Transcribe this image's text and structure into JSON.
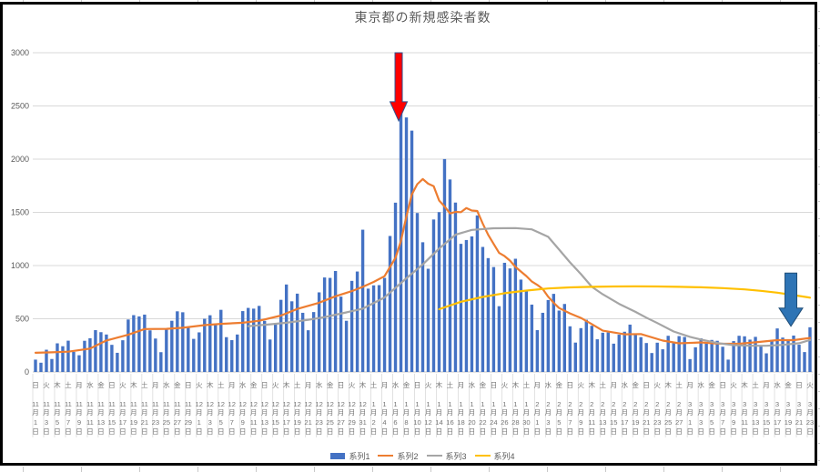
{
  "chart": {
    "title": "東京都の新規感染者数",
    "legend": [
      {
        "label": "系列1",
        "color": "#4472C4",
        "marker": "bar"
      },
      {
        "label": "系列2",
        "color": "#ED7D31",
        "marker": "line"
      },
      {
        "label": "系列3",
        "color": "#A5A5A5",
        "marker": "line"
      },
      {
        "label": "系列4",
        "color": "#FFC000",
        "marker": "line"
      }
    ],
    "y_ticks": [
      "0",
      "500",
      "1000",
      "1500",
      "2000",
      "2500",
      "3000"
    ],
    "month_char": "月",
    "day_char": "日"
  },
  "chart_data": {
    "type": "combo",
    "title": "東京都の新規感染者数",
    "ylim": [
      0,
      3000
    ],
    "y_step": 500,
    "grid": true,
    "legend_position": "bottom",
    "x_label_format": "weekday / M月 / D日 (every 2 days)",
    "x_labels": [
      "日,11,1",
      "火,11,3",
      "木,11,5",
      "土,11,7",
      "月,11,9",
      "水,11,11",
      "金,11,13",
      "日,11,15",
      "火,11,17",
      "木,11,19",
      "土,11,21",
      "月,11,23",
      "水,11,25",
      "金,11,27",
      "日,11,29",
      "火,12,1",
      "木,12,3",
      "土,12,5",
      "月,12,7",
      "水,12,9",
      "金,12,11",
      "日,12,13",
      "火,12,15",
      "木,12,17",
      "土,12,19",
      "月,12,21",
      "水,12,23",
      "金,12,25",
      "日,12,27",
      "火,12,29",
      "木,12,31",
      "土,1,2",
      "月,1,4",
      "水,1,6",
      "金,1,8",
      "日,1,10",
      "火,1,12",
      "木,1,14",
      "土,1,16",
      "月,1,18",
      "水,1,20",
      "金,1,22",
      "日,1,24",
      "火,1,26",
      "木,1,28",
      "土,1,30",
      "月,2,1",
      "水,2,3",
      "金,2,5",
      "日,2,7",
      "火,2,9",
      "木,2,11",
      "土,2,13",
      "月,2,15",
      "水,2,17",
      "金,2,19",
      "日,2,21",
      "火,2,23",
      "木,2,25",
      "土,2,27",
      "月,3,1",
      "水,3,3",
      "金,3,5",
      "日,3,7",
      "火,3,9",
      "木,3,11",
      "土,3,13",
      "月,3,15",
      "水,3,17",
      "金,3,19",
      "日,3,21",
      "火,3,23"
    ],
    "series": [
      {
        "name": "系列1",
        "type": "bar",
        "color": "#4472C4",
        "values": [
          116,
          87,
          209,
          122,
          269,
          242,
          294,
          189,
          157,
          293,
          317,
          393,
          374,
          352,
          255,
          180,
          298,
          493,
          534,
          522,
          539,
          391,
          314,
          186,
          401,
          481,
          570,
          561,
          418,
          311,
          372,
          500,
          533,
          449,
          584,
          327,
          299,
          352,
          572,
          602,
          595,
          621,
          480,
          305,
          460,
          678,
          822,
          664,
          736,
          556,
          392,
          563,
          748,
          888,
          884,
          949,
          708,
          481,
          856,
          944,
          1337,
          783,
          814,
          816,
          884,
          1278,
          1591,
          2447,
          2392,
          2268,
          1494,
          1219,
          970,
          1433,
          1502,
          2001,
          1809,
          1592,
          1204,
          1240,
          1274,
          1471,
          1175,
          1070,
          986,
          618,
          1026,
          973,
          1064,
          868,
          769,
          633,
          393,
          556,
          676,
          734,
          577,
          639,
          429,
          276,
          412,
          491,
          434,
          307,
          369,
          371,
          266,
          350,
          378,
          445,
          353,
          327,
          272,
          178,
          275,
          213,
          340,
          270,
          337,
          329,
          121,
          232,
          316,
          279,
          301,
          293,
          237,
          116,
          290,
          340,
          335,
          304,
          330,
          239,
          175,
          300,
          409,
          323,
          303,
          342,
          256,
          187,
          420
        ]
      },
      {
        "name": "系列2",
        "type": "line",
        "color": "#ED7D31",
        "points": [
          [
            0,
            180
          ],
          [
            3,
            185
          ],
          [
            6,
            191
          ],
          [
            10,
            220
          ],
          [
            13,
            296
          ],
          [
            17,
            350
          ],
          [
            20,
            403
          ],
          [
            24,
            405
          ],
          [
            27,
            415
          ],
          [
            31,
            440
          ],
          [
            34,
            452
          ],
          [
            38,
            462
          ],
          [
            41,
            481
          ],
          [
            45,
            530
          ],
          [
            48,
            592
          ],
          [
            52,
            650
          ],
          [
            55,
            711
          ],
          [
            58,
            760
          ],
          [
            60,
            800
          ],
          [
            62,
            846
          ],
          [
            64,
            900
          ],
          [
            66,
            1072
          ],
          [
            67,
            1230
          ],
          [
            68,
            1460
          ],
          [
            69,
            1668
          ],
          [
            70,
            1765
          ],
          [
            71,
            1813
          ],
          [
            72,
            1769
          ],
          [
            73,
            1746
          ],
          [
            74,
            1611
          ],
          [
            75,
            1555
          ],
          [
            76,
            1490
          ],
          [
            77,
            1504
          ],
          [
            78,
            1502
          ],
          [
            79,
            1540
          ],
          [
            80,
            1517
          ],
          [
            81,
            1513
          ],
          [
            82,
            1395
          ],
          [
            83,
            1289
          ],
          [
            84,
            1203
          ],
          [
            85,
            1119
          ],
          [
            86,
            1089
          ],
          [
            87,
            1046
          ],
          [
            88,
            987
          ],
          [
            89,
            944
          ],
          [
            90,
            901
          ],
          [
            91,
            850
          ],
          [
            92,
            818
          ],
          [
            93,
            780
          ],
          [
            94,
            708
          ],
          [
            95,
            650
          ],
          [
            96,
            601
          ],
          [
            98,
            550
          ],
          [
            100,
            508
          ],
          [
            102,
            450
          ],
          [
            104,
            388
          ],
          [
            108,
            354
          ],
          [
            111,
            356
          ],
          [
            115,
            295
          ],
          [
            118,
            269
          ],
          [
            122,
            278
          ],
          [
            125,
            267
          ],
          [
            129,
            265
          ],
          [
            132,
            279
          ],
          [
            136,
            299
          ],
          [
            139,
            299
          ],
          [
            142,
            320
          ]
        ]
      },
      {
        "name": "系列3",
        "type": "line",
        "color": "#A5A5A5",
        "points": [
          [
            39,
            430
          ],
          [
            43,
            448
          ],
          [
            46,
            462
          ],
          [
            50,
            490
          ],
          [
            53,
            515
          ],
          [
            57,
            560
          ],
          [
            60,
            595
          ],
          [
            64,
            700
          ],
          [
            68,
            880
          ],
          [
            71,
            1010
          ],
          [
            74,
            1160
          ],
          [
            77,
            1290
          ],
          [
            80,
            1335
          ],
          [
            84,
            1350
          ],
          [
            88,
            1352
          ],
          [
            91,
            1340
          ],
          [
            94,
            1270
          ],
          [
            96,
            1150
          ],
          [
            98,
            1030
          ],
          [
            100,
            920
          ],
          [
            102,
            800
          ],
          [
            104,
            730
          ],
          [
            107,
            640
          ],
          [
            110,
            565
          ],
          [
            112,
            510
          ],
          [
            114,
            460
          ],
          [
            117,
            380
          ],
          [
            120,
            330
          ],
          [
            122,
            305
          ],
          [
            125,
            272
          ],
          [
            128,
            252
          ],
          [
            131,
            246
          ],
          [
            134,
            246
          ],
          [
            137,
            255
          ],
          [
            140,
            270
          ],
          [
            142,
            300
          ]
        ]
      },
      {
        "name": "系列4",
        "type": "line",
        "color": "#FFC000",
        "points": [
          [
            74,
            590
          ],
          [
            78,
            660
          ],
          [
            82,
            705
          ],
          [
            86,
            740
          ],
          [
            90,
            765
          ],
          [
            94,
            785
          ],
          [
            98,
            795
          ],
          [
            102,
            800
          ],
          [
            106,
            803
          ],
          [
            110,
            804
          ],
          [
            114,
            803
          ],
          [
            118,
            800
          ],
          [
            122,
            796
          ],
          [
            126,
            788
          ],
          [
            130,
            776
          ],
          [
            133,
            762
          ],
          [
            136,
            745
          ],
          [
            139,
            722
          ],
          [
            142,
            698
          ]
        ]
      }
    ],
    "annotations": [
      {
        "shape": "down-arrow",
        "name": "red-arrow",
        "fill": "#FF0000",
        "stroke": "#2F528F",
        "day_index": 67,
        "top_value": 3000,
        "tip_value": 2360,
        "shaft_hw": 4,
        "head_hw": 9.5,
        "head_h": 21
      },
      {
        "shape": "down-arrow",
        "name": "blue-arrow",
        "fill": "#2E74B5",
        "stroke": "#1F4E79",
        "day_index": 138.5,
        "top_value": 930,
        "tip_value": 430,
        "shaft_hw": 6.5,
        "head_hw": 13,
        "head_h": 20
      }
    ]
  }
}
